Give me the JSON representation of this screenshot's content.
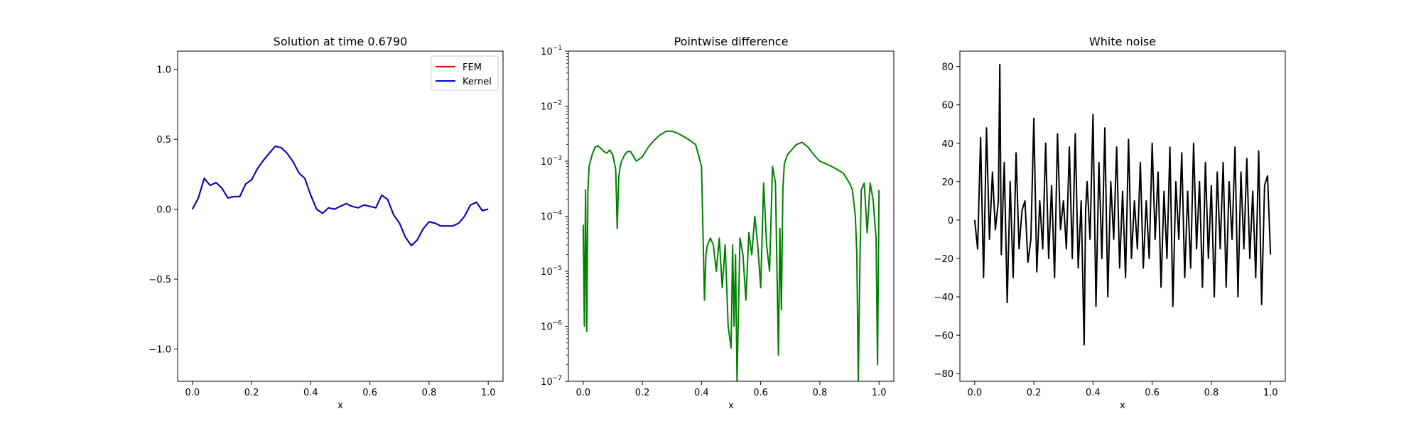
{
  "chart_data": [
    {
      "type": "line",
      "title": "Solution at time 0.6790",
      "xlabel": "x",
      "ylabel": "",
      "xlim": [
        -0.05,
        1.05
      ],
      "ylim": [
        -1.23,
        1.13
      ],
      "xticks": [
        0.0,
        0.2,
        0.4,
        0.6,
        0.8,
        1.0
      ],
      "xtick_labels": [
        "0.0",
        "0.2",
        "0.4",
        "0.6",
        "0.8",
        "1.0"
      ],
      "yticks": [
        -1.0,
        -0.5,
        0.0,
        0.5,
        1.0
      ],
      "ytick_labels": [
        "−1.0",
        "−0.5",
        "0.0",
        "0.5",
        "1.0"
      ],
      "grid": false,
      "legend": "top-right",
      "series": [
        {
          "name": "FEM",
          "color": "#ff0000",
          "x": [
            0.0,
            0.02,
            0.04,
            0.06,
            0.08,
            0.1,
            0.12,
            0.14,
            0.16,
            0.18,
            0.2,
            0.22,
            0.24,
            0.26,
            0.28,
            0.3,
            0.32,
            0.34,
            0.36,
            0.38,
            0.4,
            0.42,
            0.44,
            0.46,
            0.48,
            0.5,
            0.52,
            0.54,
            0.56,
            0.58,
            0.6,
            0.62,
            0.64,
            0.66,
            0.68,
            0.7,
            0.72,
            0.74,
            0.76,
            0.78,
            0.8,
            0.82,
            0.84,
            0.86,
            0.88,
            0.9,
            0.92,
            0.94,
            0.96,
            0.98,
            1.0
          ],
          "y": [
            0.0,
            0.08,
            0.22,
            0.17,
            0.19,
            0.15,
            0.08,
            0.09,
            0.09,
            0.18,
            0.21,
            0.29,
            0.35,
            0.4,
            0.45,
            0.44,
            0.4,
            0.34,
            0.26,
            0.22,
            0.1,
            0.0,
            -0.03,
            0.01,
            0.0,
            0.02,
            0.04,
            0.02,
            0.01,
            0.03,
            0.02,
            0.01,
            0.1,
            0.07,
            -0.04,
            -0.1,
            -0.2,
            -0.26,
            -0.22,
            -0.14,
            -0.09,
            -0.1,
            -0.12,
            -0.12,
            -0.12,
            -0.1,
            -0.05,
            0.03,
            0.05,
            -0.01,
            0.0
          ]
        },
        {
          "name": "Kernel",
          "color": "#0000cc",
          "x": [
            0.0,
            0.02,
            0.04,
            0.06,
            0.08,
            0.1,
            0.12,
            0.14,
            0.16,
            0.18,
            0.2,
            0.22,
            0.24,
            0.26,
            0.28,
            0.3,
            0.32,
            0.34,
            0.36,
            0.38,
            0.4,
            0.42,
            0.44,
            0.46,
            0.48,
            0.5,
            0.52,
            0.54,
            0.56,
            0.58,
            0.6,
            0.62,
            0.64,
            0.66,
            0.68,
            0.7,
            0.72,
            0.74,
            0.76,
            0.78,
            0.8,
            0.82,
            0.84,
            0.86,
            0.88,
            0.9,
            0.92,
            0.94,
            0.96,
            0.98,
            1.0
          ],
          "y": [
            0.0,
            0.08,
            0.22,
            0.17,
            0.19,
            0.15,
            0.08,
            0.09,
            0.09,
            0.18,
            0.21,
            0.29,
            0.35,
            0.4,
            0.45,
            0.44,
            0.4,
            0.34,
            0.26,
            0.22,
            0.1,
            0.0,
            -0.03,
            0.01,
            0.0,
            0.02,
            0.04,
            0.02,
            0.01,
            0.03,
            0.02,
            0.01,
            0.1,
            0.07,
            -0.04,
            -0.1,
            -0.2,
            -0.26,
            -0.22,
            -0.14,
            -0.09,
            -0.1,
            -0.12,
            -0.12,
            -0.12,
            -0.1,
            -0.05,
            0.03,
            0.05,
            -0.01,
            0.0
          ]
        }
      ]
    },
    {
      "type": "line",
      "title": "Pointwise difference",
      "xlabel": "x",
      "ylabel": "",
      "yscale": "log",
      "xlim": [
        -0.05,
        1.05
      ],
      "ylim": [
        1e-07,
        0.1
      ],
      "xticks": [
        0.0,
        0.2,
        0.4,
        0.6,
        0.8,
        1.0
      ],
      "xtick_labels": [
        "0.0",
        "0.2",
        "0.4",
        "0.6",
        "0.8",
        "1.0"
      ],
      "yticks": [
        1e-07,
        1e-06,
        1e-05,
        0.0001,
        0.001,
        0.01,
        0.1
      ],
      "ytick_exponents": [
        "−7",
        "−6",
        "−5",
        "−4",
        "−3",
        "−2",
        "−1"
      ],
      "ytick_base": "10",
      "grid": false,
      "series": [
        {
          "color": "#008000",
          "x": [
            0.0,
            0.004,
            0.008,
            0.012,
            0.016,
            0.02,
            0.03,
            0.04,
            0.05,
            0.06,
            0.07,
            0.08,
            0.09,
            0.1,
            0.11,
            0.115,
            0.12,
            0.125,
            0.13,
            0.14,
            0.15,
            0.16,
            0.18,
            0.2,
            0.22,
            0.24,
            0.26,
            0.28,
            0.3,
            0.32,
            0.34,
            0.36,
            0.38,
            0.39,
            0.4,
            0.405,
            0.41,
            0.415,
            0.42,
            0.43,
            0.44,
            0.45,
            0.46,
            0.47,
            0.48,
            0.49,
            0.5,
            0.505,
            0.51,
            0.515,
            0.52,
            0.53,
            0.54,
            0.55,
            0.56,
            0.57,
            0.58,
            0.59,
            0.6,
            0.61,
            0.62,
            0.63,
            0.64,
            0.65,
            0.66,
            0.665,
            0.67,
            0.675,
            0.68,
            0.69,
            0.7,
            0.72,
            0.74,
            0.76,
            0.78,
            0.8,
            0.82,
            0.84,
            0.86,
            0.88,
            0.9,
            0.91,
            0.92,
            0.925,
            0.93,
            0.935,
            0.94,
            0.95,
            0.96,
            0.97,
            0.98,
            0.99,
            0.995,
            1.0
          ],
          "y": [
            7e-05,
            1e-06,
            0.0003,
            8e-07,
            0.0003,
            0.0008,
            0.0013,
            0.0018,
            0.0019,
            0.0017,
            0.0015,
            0.0014,
            0.0016,
            0.0013,
            0.0007,
            6e-05,
            0.0005,
            0.0008,
            0.001,
            0.0013,
            0.0015,
            0.0015,
            0.001,
            0.0012,
            0.0018,
            0.0024,
            0.003,
            0.0035,
            0.0035,
            0.0032,
            0.0028,
            0.0024,
            0.002,
            0.0013,
            0.0008,
            5e-05,
            3e-06,
            2e-05,
            3e-05,
            4e-05,
            3e-05,
            1e-05,
            4e-05,
            5e-06,
            3e-05,
            1e-06,
            4e-07,
            3e-05,
            1e-06,
            2e-05,
            1e-07,
            4e-05,
            2e-05,
            3e-06,
            5e-05,
            2e-05,
            0.0001,
            3e-05,
            5e-06,
            0.0004,
            3e-05,
            1e-05,
            0.0008,
            0.0004,
            3e-07,
            6e-05,
            2e-06,
            0.0003,
            0.0009,
            0.0013,
            0.0015,
            0.002,
            0.0022,
            0.0018,
            0.0013,
            0.001,
            0.0009,
            0.0008,
            0.0007,
            0.0006,
            0.0004,
            0.0003,
            0.0001,
            2e-05,
            1e-07,
            1e-05,
            0.0003,
            0.0004,
            5e-05,
            0.0004,
            0.0002,
            4e-05,
            2e-07,
            0.0003
          ]
        }
      ]
    },
    {
      "type": "line",
      "title": "White noise",
      "xlabel": "x",
      "ylabel": "",
      "xlim": [
        -0.05,
        1.05
      ],
      "ylim": [
        -84,
        88
      ],
      "xticks": [
        0.0,
        0.2,
        0.4,
        0.6,
        0.8,
        1.0
      ],
      "xtick_labels": [
        "0.0",
        "0.2",
        "0.4",
        "0.6",
        "0.8",
        "1.0"
      ],
      "yticks": [
        -80,
        -60,
        -40,
        -20,
        0,
        20,
        40,
        60,
        80
      ],
      "ytick_labels": [
        "−80",
        "−60",
        "−40",
        "−20",
        "0",
        "20",
        "40",
        "60",
        "80"
      ],
      "grid": false,
      "series": [
        {
          "color": "#000000",
          "x": [
            0.0,
            0.01,
            0.02,
            0.03,
            0.04,
            0.05,
            0.06,
            0.07,
            0.08,
            0.085,
            0.09,
            0.1,
            0.11,
            0.12,
            0.13,
            0.14,
            0.15,
            0.16,
            0.17,
            0.18,
            0.19,
            0.2,
            0.21,
            0.22,
            0.23,
            0.24,
            0.25,
            0.26,
            0.27,
            0.28,
            0.29,
            0.3,
            0.31,
            0.32,
            0.33,
            0.34,
            0.35,
            0.36,
            0.37,
            0.375,
            0.38,
            0.39,
            0.4,
            0.41,
            0.42,
            0.43,
            0.44,
            0.45,
            0.46,
            0.47,
            0.48,
            0.49,
            0.5,
            0.51,
            0.52,
            0.53,
            0.54,
            0.55,
            0.56,
            0.57,
            0.58,
            0.59,
            0.6,
            0.61,
            0.62,
            0.63,
            0.64,
            0.65,
            0.66,
            0.67,
            0.68,
            0.69,
            0.7,
            0.71,
            0.72,
            0.73,
            0.74,
            0.75,
            0.76,
            0.77,
            0.78,
            0.79,
            0.8,
            0.81,
            0.82,
            0.83,
            0.84,
            0.85,
            0.86,
            0.87,
            0.88,
            0.89,
            0.9,
            0.91,
            0.92,
            0.93,
            0.94,
            0.95,
            0.96,
            0.97,
            0.98,
            0.99,
            1.0
          ],
          "y": [
            0,
            -15,
            43,
            -30,
            48,
            -10,
            25,
            -5,
            10,
            81,
            -18,
            30,
            -43,
            20,
            -30,
            35,
            -15,
            5,
            10,
            -22,
            -10,
            53,
            -27,
            10,
            -15,
            40,
            -20,
            18,
            -30,
            45,
            -5,
            10,
            -15,
            38,
            -20,
            45,
            -25,
            10,
            -65,
            5,
            20,
            -10,
            55,
            -45,
            30,
            -20,
            48,
            -40,
            20,
            -10,
            38,
            -25,
            15,
            -30,
            42,
            -20,
            10,
            -15,
            30,
            -25,
            10,
            -20,
            40,
            -10,
            25,
            -35,
            15,
            -20,
            38,
            -45,
            20,
            -10,
            35,
            -30,
            15,
            -25,
            40,
            -15,
            20,
            -35,
            30,
            -20,
            18,
            -40,
            25,
            -15,
            30,
            -35,
            20,
            -10,
            38,
            -40,
            25,
            -15,
            32,
            -20,
            15,
            -30,
            36,
            -44,
            18,
            23,
            -18
          ]
        }
      ]
    }
  ]
}
